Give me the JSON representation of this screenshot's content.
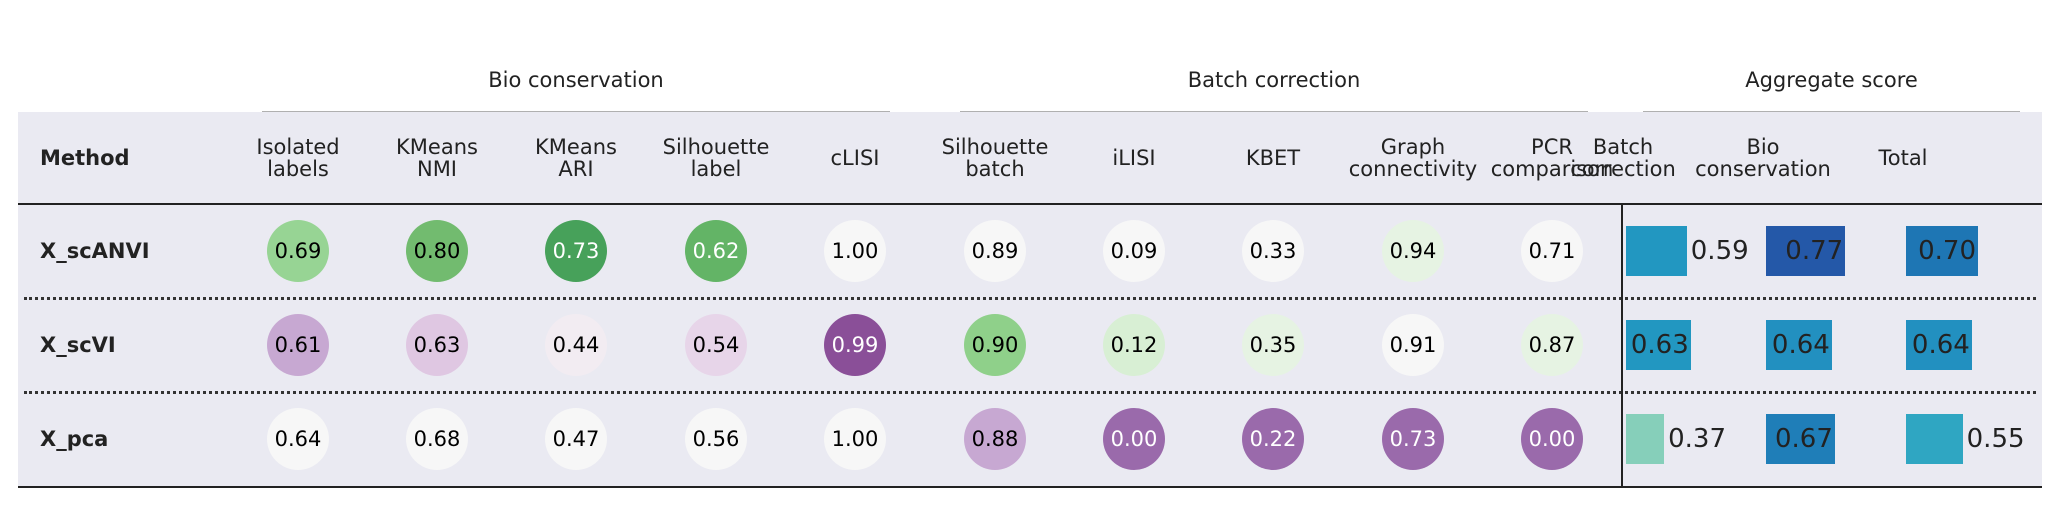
{
  "method_header": "Method",
  "groups": [
    "Bio conservation",
    "Batch correction",
    "Aggregate score"
  ],
  "columns": [
    {
      "key": "isolated_labels",
      "label": [
        "Isolated",
        "labels"
      ],
      "group": "Bio conservation",
      "kind": "circle",
      "cmap": "PRGn"
    },
    {
      "key": "kmeans_nmi",
      "label": [
        "KMeans",
        "NMI"
      ],
      "group": "Bio conservation",
      "kind": "circle",
      "cmap": "PRGn"
    },
    {
      "key": "kmeans_ari",
      "label": [
        "KMeans",
        "ARI"
      ],
      "group": "Bio conservation",
      "kind": "circle",
      "cmap": "PRGn"
    },
    {
      "key": "silhouette_label",
      "label": [
        "Silhouette",
        "label"
      ],
      "group": "Bio conservation",
      "kind": "circle",
      "cmap": "PRGn"
    },
    {
      "key": "clisi",
      "label": [
        "cLISI"
      ],
      "group": "Bio conservation",
      "kind": "circle",
      "cmap": "PRGn"
    },
    {
      "key": "silhouette_batch",
      "label": [
        "Silhouette",
        "batch"
      ],
      "group": "Batch correction",
      "kind": "circle",
      "cmap": "PRGn"
    },
    {
      "key": "ilisi",
      "label": [
        "iLISI"
      ],
      "group": "Batch correction",
      "kind": "circle",
      "cmap": "PRGn"
    },
    {
      "key": "kbet",
      "label": [
        "KBET"
      ],
      "group": "Batch correction",
      "kind": "circle",
      "cmap": "PRGn"
    },
    {
      "key": "graph_connectivity",
      "label": [
        "Graph",
        "connectivity"
      ],
      "group": "Batch correction",
      "kind": "circle",
      "cmap": "PRGn"
    },
    {
      "key": "pcr_comparison",
      "label": [
        "PCR",
        "comparison"
      ],
      "group": "Batch correction",
      "kind": "circle",
      "cmap": "PRGn"
    },
    {
      "key": "agg_batch",
      "label": [
        "Batch",
        "correction"
      ],
      "group": "Aggregate score",
      "kind": "bar",
      "cmap": "YlGnBu"
    },
    {
      "key": "agg_bio",
      "label": [
        "Bio",
        "conservation"
      ],
      "group": "Aggregate score",
      "kind": "bar",
      "cmap": "YlGnBu"
    },
    {
      "key": "agg_total",
      "label": [
        "Total"
      ],
      "group": "Aggregate score",
      "kind": "bar",
      "cmap": "YlGnBu"
    }
  ],
  "chart_data": {
    "type": "table",
    "rows": [
      {
        "method": "X_scANVI",
        "values": [
          0.69,
          0.8,
          0.73,
          0.62,
          1.0,
          0.89,
          0.09,
          0.33,
          0.94,
          0.71,
          0.59,
          0.77,
          0.7
        ],
        "labels": [
          "0.69",
          "0.80",
          "0.73",
          "0.62",
          "1.00",
          "0.89",
          "0.09",
          "0.33",
          "0.94",
          "0.71",
          "0.59",
          "0.77",
          "0.70"
        ],
        "colors": [
          "#97d494",
          "#72bb6f",
          "#47a15a",
          "#63b466",
          "#f7f7f7",
          "#f7f7f7",
          "#f7f7f7",
          "#f7f7f7",
          "#e6f3e3",
          "#f7f7f7",
          "#2297c1",
          "#2458a8",
          "#1e76b4"
        ]
      },
      {
        "method": "X_scVI",
        "values": [
          0.61,
          0.63,
          0.44,
          0.54,
          0.99,
          0.9,
          0.12,
          0.35,
          0.91,
          0.87,
          0.63,
          0.64,
          0.64
        ],
        "labels": [
          "0.61",
          "0.63",
          "0.44",
          "0.54",
          "0.99",
          "0.90",
          "0.12",
          "0.35",
          "0.91",
          "0.87",
          "0.63",
          "0.64",
          "0.64"
        ],
        "colors": [
          "#c7a8d2",
          "#dfc7e2",
          "#f2ecf2",
          "#e7d5e9",
          "#8a4f98",
          "#8fd08a",
          "#d8efd4",
          "#e6f3e3",
          "#f7f7f7",
          "#e6f3e3",
          "#2297c1",
          "#2290c0",
          "#2290c0"
        ]
      },
      {
        "method": "X_pca",
        "values": [
          0.64,
          0.68,
          0.47,
          0.56,
          1.0,
          0.88,
          0.0,
          0.22,
          0.73,
          0.0,
          0.37,
          0.67,
          0.55
        ],
        "labels": [
          "0.64",
          "0.68",
          "0.47",
          "0.56",
          "1.00",
          "0.88",
          "0.00",
          "0.22",
          "0.73",
          "0.00",
          "0.37",
          "0.67",
          "0.55"
        ],
        "colors": [
          "#f7f7f7",
          "#f7f7f7",
          "#f7f7f7",
          "#f7f7f7",
          "#f7f7f7",
          "#c7a8d2",
          "#9a6aab",
          "#9a6aab",
          "#9a6aab",
          "#9a6aab",
          "#86cfba",
          "#1f7eb8",
          "#2fa6c2"
        ]
      }
    ]
  }
}
